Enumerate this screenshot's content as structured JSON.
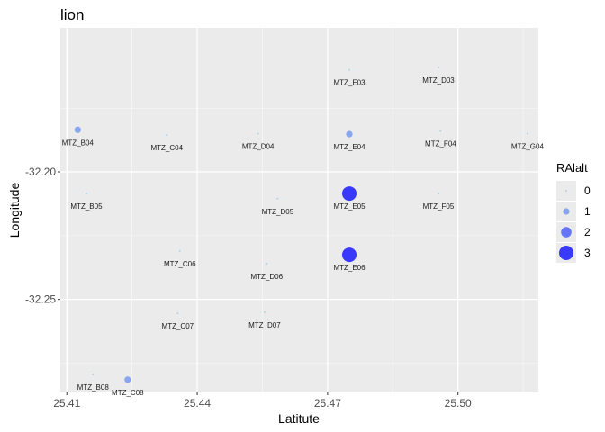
{
  "chart_data": {
    "type": "scatter",
    "title": "lion",
    "xlabel": "Latitute",
    "ylabel": "Longitude",
    "xlim": [
      25.4085,
      25.5185
    ],
    "ylim": [
      -32.2865,
      -32.1435
    ],
    "xticks": [
      25.41,
      25.44,
      25.47,
      25.5
    ],
    "xtick_labels": [
      "25.41",
      "25.44",
      "25.47",
      "25.50"
    ],
    "yticks": [
      -32.2,
      -32.25
    ],
    "ytick_labels": [
      "-32.20",
      "-32.25"
    ],
    "grid": true,
    "legend": {
      "title": "RAlalt",
      "position": "right",
      "entries": [
        {
          "label": "0",
          "value": 0
        },
        {
          "label": "1",
          "value": 1
        },
        {
          "label": "2",
          "value": 2
        },
        {
          "label": "3",
          "value": 3
        }
      ]
    },
    "colors": {
      "panel_bg": "#ebebeb",
      "grid_major": "#ffffff",
      "low": "#9ad0e8",
      "high": "#1a1aff"
    },
    "points": [
      {
        "label": "MTZ_E03",
        "x": 25.475,
        "y": -32.16,
        "ralalt": 0
      },
      {
        "label": "MTZ_D03",
        "x": 25.4955,
        "y": -32.159,
        "ralalt": 0
      },
      {
        "label": "MTZ_B04",
        "x": 25.4125,
        "y": -32.1835,
        "ralalt": 1
      },
      {
        "label": "MTZ_C04",
        "x": 25.433,
        "y": -32.1855,
        "ralalt": 0
      },
      {
        "label": "MTZ_D04",
        "x": 25.454,
        "y": -32.185,
        "ralalt": 0
      },
      {
        "label": "MTZ_E04",
        "x": 25.475,
        "y": -32.1852,
        "ralalt": 1
      },
      {
        "label": "MTZ_F04",
        "x": 25.496,
        "y": -32.184,
        "ralalt": 0
      },
      {
        "label": "MTZ_G04",
        "x": 25.516,
        "y": -32.185,
        "ralalt": 0
      },
      {
        "label": "MTZ_B05",
        "x": 25.4145,
        "y": -32.2085,
        "ralalt": 0
      },
      {
        "label": "MTZ_D05",
        "x": 25.4585,
        "y": -32.2105,
        "ralalt": 0
      },
      {
        "label": "MTZ_E05",
        "x": 25.475,
        "y": -32.2085,
        "ralalt": 3
      },
      {
        "label": "MTZ_F05",
        "x": 25.4955,
        "y": -32.2085,
        "ralalt": 0
      },
      {
        "label": "MTZ_C06",
        "x": 25.436,
        "y": -32.231,
        "ralalt": 0
      },
      {
        "label": "MTZ_D06",
        "x": 25.456,
        "y": -32.236,
        "ralalt": 0
      },
      {
        "label": "MTZ_E06",
        "x": 25.475,
        "y": -32.2325,
        "ralalt": 3
      },
      {
        "label": "MTZ_C07",
        "x": 25.4355,
        "y": -32.2555,
        "ralalt": 0
      },
      {
        "label": "MTZ_D07",
        "x": 25.4555,
        "y": -32.255,
        "ralalt": 0
      },
      {
        "label": "MTZ_B08",
        "x": 25.416,
        "y": -32.2795,
        "ralalt": 0
      },
      {
        "label": "MTZ_C08",
        "x": 25.424,
        "y": -32.2815,
        "ralalt": 1
      }
    ]
  }
}
